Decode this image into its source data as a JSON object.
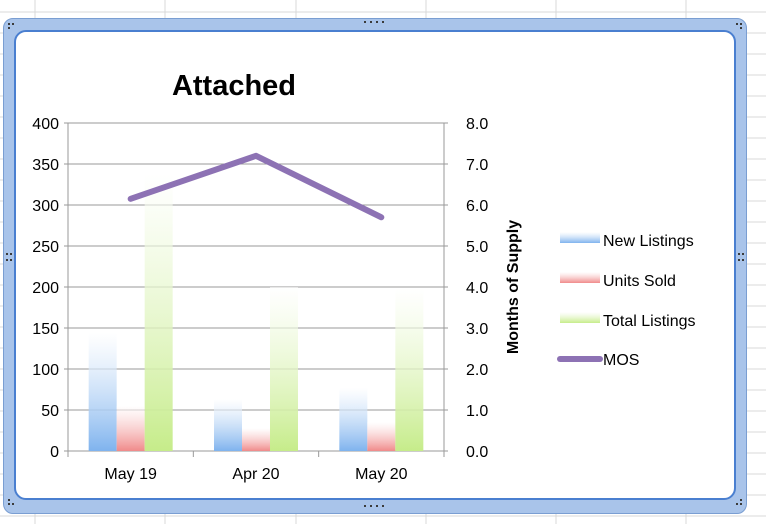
{
  "chart_data": {
    "type": "bar",
    "title": "Attached",
    "categories": [
      "May 19",
      "Apr 20",
      "May 20"
    ],
    "series": [
      {
        "name": "New Listings",
        "values": [
          144,
          63,
          77
        ],
        "color": "#7fb3ee"
      },
      {
        "name": "Units Sold",
        "values": [
          55,
          28,
          35
        ],
        "color": "#f08a8a"
      },
      {
        "name": "Total Listings",
        "values": [
          338,
          200,
          198
        ],
        "color": "#c6ec8a"
      }
    ],
    "line_series": {
      "name": "MOS",
      "values": [
        6.15,
        7.2,
        5.7
      ],
      "color": "#8d72b4",
      "axis": "right"
    },
    "ylim": [
      0,
      400
    ],
    "y_ticks": [
      "0",
      "50",
      "100",
      "150",
      "200",
      "250",
      "300",
      "350",
      "400"
    ],
    "y2lim": [
      0,
      8
    ],
    "y2_ticks": [
      "0.0",
      "1.0",
      "2.0",
      "3.0",
      "4.0",
      "5.0",
      "6.0",
      "7.0",
      "8.0"
    ],
    "y2label": "Months of Supply",
    "xlabel": "",
    "ylabel": "",
    "grid": true,
    "legend_position": "right"
  }
}
